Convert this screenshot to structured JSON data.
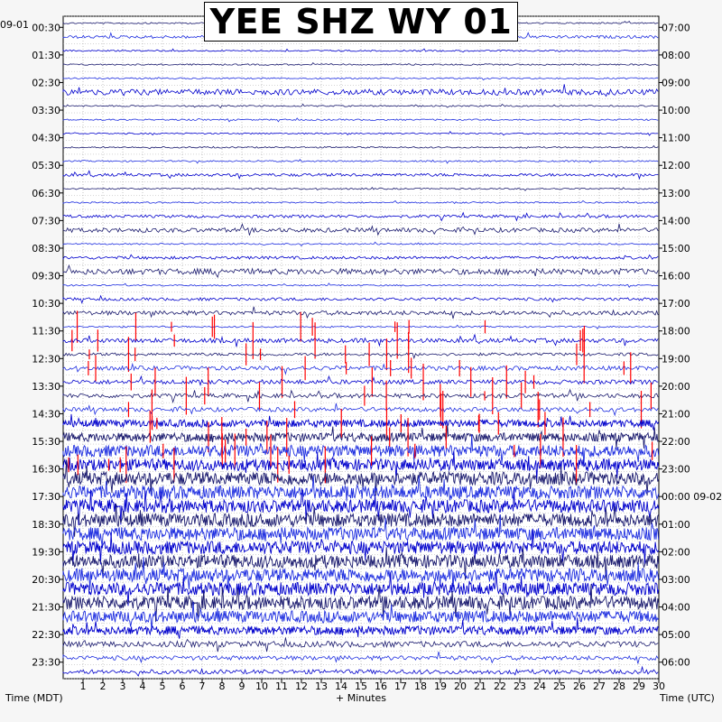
{
  "chart_data": {
    "type": "helicorder",
    "title": "YEE SHZ WY 01",
    "left_axis_label": "Time (MDT)",
    "right_axis_label": "Time (UTC)",
    "x_axis_label": "+ Minutes",
    "left_date": "09-01",
    "right_date_marker": "09-02",
    "x_ticks": [
      1,
      2,
      3,
      4,
      5,
      6,
      7,
      8,
      9,
      10,
      11,
      12,
      13,
      14,
      15,
      16,
      17,
      18,
      19,
      20,
      21,
      22,
      23,
      24,
      25,
      26,
      27,
      28,
      29,
      30
    ],
    "xlim": [
      0,
      30
    ],
    "left_ticks": [
      "00:30",
      "01:30",
      "02:30",
      "03:30",
      "04:30",
      "05:30",
      "06:30",
      "07:30",
      "08:30",
      "09:30",
      "10:30",
      "11:30",
      "12:30",
      "13:30",
      "14:30",
      "15:30",
      "16:30",
      "17:30",
      "18:30",
      "19:30",
      "20:30",
      "21:30",
      "22:30",
      "23:30"
    ],
    "right_ticks": [
      "07:00",
      "08:00",
      "09:00",
      "10:00",
      "11:00",
      "12:00",
      "13:00",
      "14:00",
      "15:00",
      "16:00",
      "17:00",
      "18:00",
      "19:00",
      "20:00",
      "21:00",
      "22:00",
      "23:00",
      "00:00 09-02",
      "01:00",
      "02:00",
      "03:00",
      "04:00",
      "05:00",
      "06:00"
    ],
    "trace_colors": [
      "#1a1a6e",
      "#1f2fe0",
      "#0000cc"
    ],
    "clip_color": "#ff0000",
    "grid": true,
    "gridlines": "dotted",
    "trace_count": 48,
    "trace_amplitude": [
      1,
      2,
      1,
      1,
      1,
      4,
      1,
      1,
      1,
      1,
      1,
      2,
      1,
      1,
      2,
      3,
      1,
      2,
      4,
      1,
      2,
      3,
      1,
      3,
      2,
      3,
      3,
      3,
      3,
      5,
      6,
      8,
      8,
      9,
      9,
      9,
      9,
      9,
      9,
      9,
      9,
      9,
      9,
      8,
      6,
      4,
      3,
      3
    ],
    "clipped_rows": [
      22,
      23,
      24,
      25,
      26,
      27,
      28,
      29,
      30,
      31,
      32
    ]
  }
}
